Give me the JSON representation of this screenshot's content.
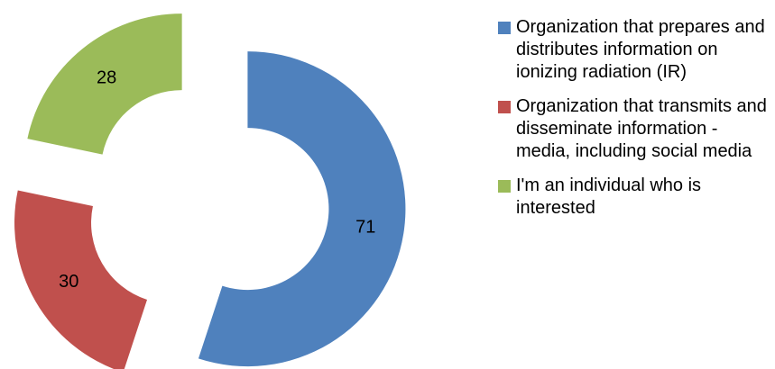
{
  "chart_data": {
    "type": "donut",
    "categories": [
      "Organization  that prepares  and distributes information on ionizing radiation (IR)",
      "Organization that transmits and disseminate information - media, including social media",
      "I'm an individual who is interested"
    ],
    "values": [
      71,
      30,
      28
    ],
    "colors": [
      "#4f81bd",
      "#c0504d",
      "#9bbb59"
    ],
    "legend": "right"
  }
}
